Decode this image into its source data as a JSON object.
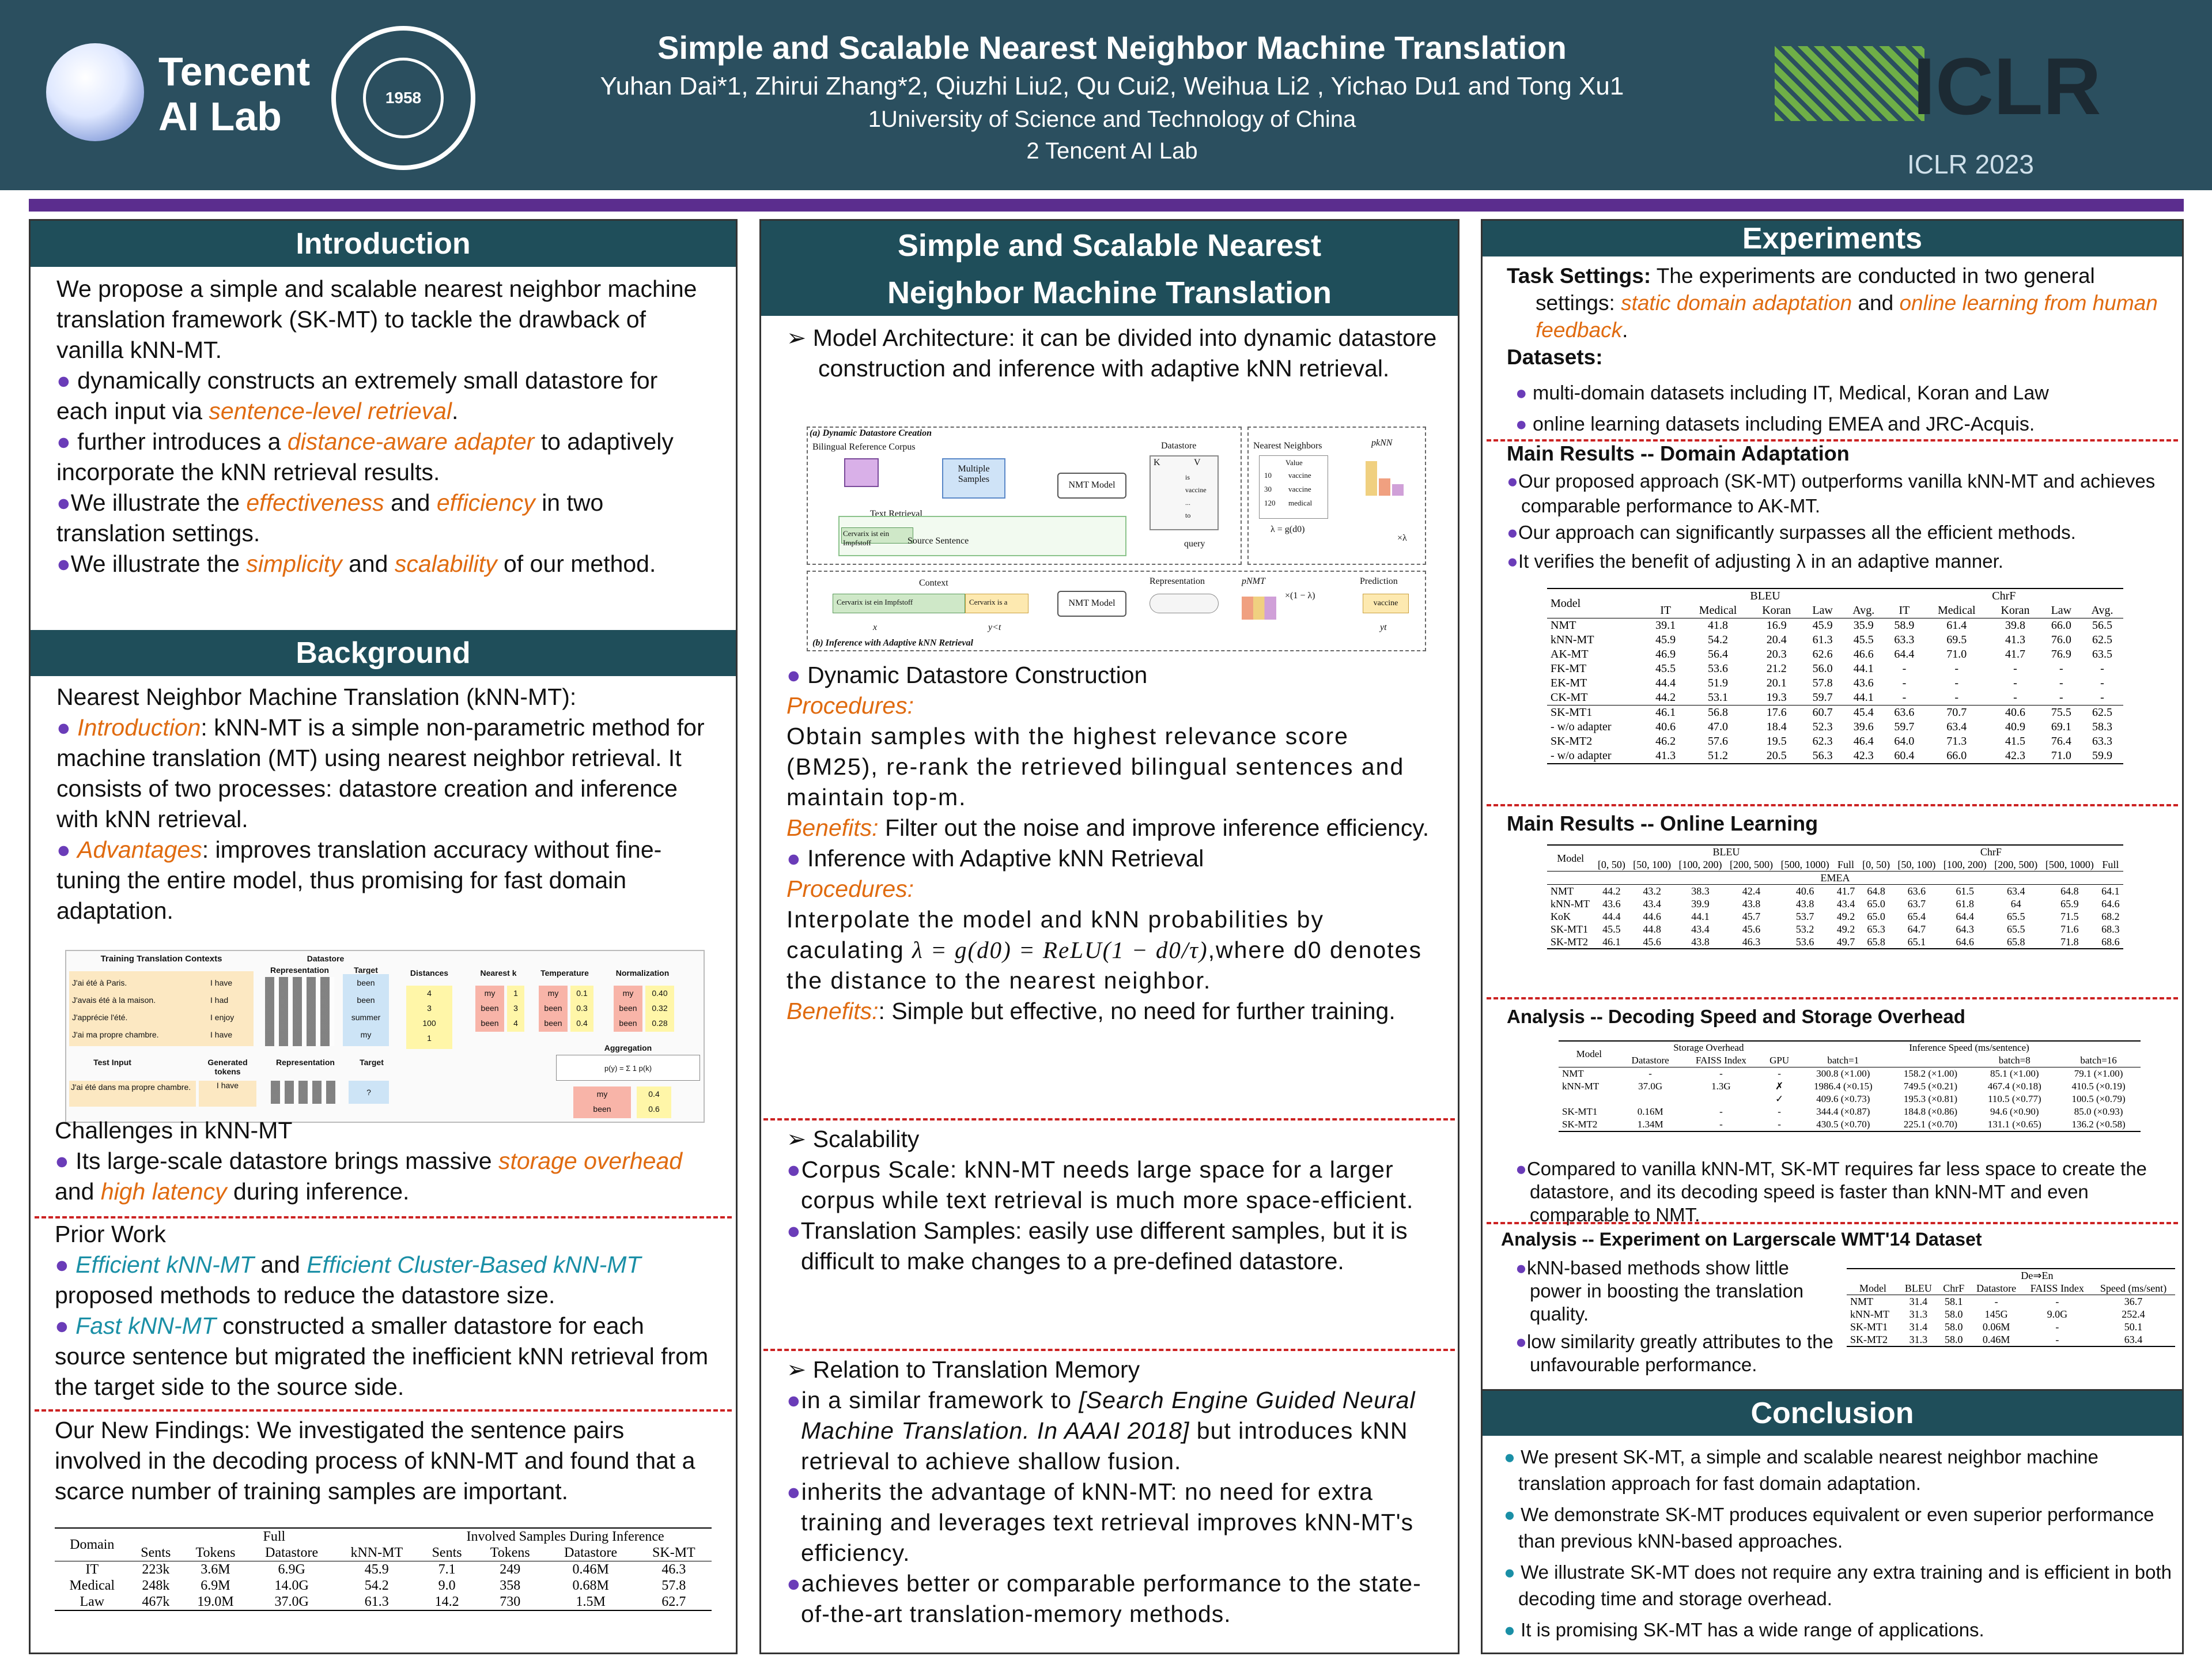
{
  "header": {
    "logo_text_1": "Tencent",
    "logo_text_2": "AI Lab",
    "seal_year": "1958",
    "title": "Simple and Scalable Nearest Neighbor Machine Translation",
    "authors": "Yuhan Dai*1, Zhirui Zhang*2, Qiuzhi Liu2, Qu Cui2, Weihua Li2 , Yichao Du1 and Tong Xu1",
    "affil1": "1University of Science and Technology of China",
    "affil2": "2 Tencent AI Lab",
    "conf_logo": "ICLR",
    "conf": "ICLR 2023"
  },
  "intro": {
    "heading": "Introduction",
    "p1": "We propose a simple and scalable nearest neighbor machine translation framework (SK-MT) to tackle the drawback of vanilla kNN-MT.",
    "b1a": "dynamically constructs an extremely small datastore for each input via ",
    "b1b": "sentence-level retrieval",
    "b1c": ".",
    "b2a": "further introduces a ",
    "b2b": "distance-aware adapter",
    "b2c": " to adaptively incorporate the kNN retrieval results.",
    "b3a": "We illustrate the ",
    "b3b": "effectiveness",
    "b3c": " and ",
    "b3d": "efficiency",
    "b3e": " in two translation settings.",
    "b4a": "We illustrate the ",
    "b4b": "simplicity",
    "b4c": " and ",
    "b4d": "scalability",
    "b4e": " of our method."
  },
  "background": {
    "heading": "Background",
    "sub1": "Nearest Neighbor Machine Translation (kNN-MT):",
    "i1a": "Introduction",
    "i1b": ": kNN-MT is a simple non-parametric method for machine translation (MT) using nearest neighbor retrieval. It consists of two processes: datastore creation and inference with kNN retrieval.",
    "i2a": "Advantages",
    "i2b": ": improves translation accuracy without fine-tuning the entire model, thus promising for fast domain adaptation.",
    "fig": {
      "ttc": "Training Translation Contexts",
      "datastore": "Datastore",
      "representation": "Representation",
      "target": "Target",
      "distances": "Distances",
      "nearest": "Nearest k",
      "temperature": "Temperature",
      "normalization": "Normalization",
      "aggregation": "Aggregation",
      "src": [
        "J'ai été à Paris.",
        "J'avais été à la maison.",
        "J'apprécie l'été.",
        "J'ai ma propre chambre."
      ],
      "tgt": [
        "I have",
        "I had",
        "I enjoy",
        "I have"
      ],
      "targets": [
        "been",
        "been",
        "summer",
        "my"
      ],
      "dist": [
        "4",
        "3",
        "100",
        "1"
      ],
      "nn": [
        "my",
        "been",
        "been"
      ],
      "nk": [
        "1",
        "3",
        "4"
      ],
      "temp": [
        "0.1",
        "0.3",
        "0.4"
      ],
      "norm": [
        "0.40",
        "0.32",
        "0.28"
      ],
      "test_input": "Test Input",
      "generated": "Generated tokens",
      "test_src": "J'ai été dans ma propre chambre.",
      "test_gen": "I have",
      "q": "?",
      "agg_words": [
        "my",
        "been"
      ],
      "agg_vals": [
        "0.4",
        "0.6"
      ]
    },
    "sub2": "Challenges in kNN-MT",
    "c1a": "Its large-scale datastore brings massive ",
    "c1b": "storage overhead",
    "c1c": " and ",
    "c1d": "high latency",
    "c1e": " during inference.",
    "sub3": "Prior Work",
    "pw1a": "Efficient kNN-MT",
    "pw1b": " and ",
    "pw1c": "Efficient Cluster-Based kNN-MT",
    "pw1d": " proposed methods to reduce the datastore size.",
    "pw2a": "Fast kNN-MT",
    "pw2b": " constructed a smaller datastore for each source sentence but migrated the inefficient kNN retrieval from the target side to the source side.",
    "nf_head": "Our New Findings",
    "nf_body": ": We investigated the sentence pairs involved in the decoding process of kNN-MT and found that a scarce number of training samples are important.",
    "table": {
      "headers": [
        "Domain",
        "Full",
        "Involved Samples During Inference",
        "Sents",
        "Tokens",
        "Datastore",
        "kNN-MT",
        "Sents",
        "Tokens",
        "Datastore",
        "SK-MT"
      ],
      "rows": [
        [
          "IT",
          "223k",
          "3.6M",
          "6.9G",
          "45.9",
          "7.1",
          "249",
          "0.46M",
          "46.3"
        ],
        [
          "Medical",
          "248k",
          "6.9M",
          "14.0G",
          "54.2",
          "9.0",
          "358",
          "0.68M",
          "57.8"
        ],
        [
          "Law",
          "467k",
          "19.0M",
          "37.0G",
          "61.3",
          "14.2",
          "730",
          "1.5M",
          "62.7"
        ]
      ]
    }
  },
  "method": {
    "heading1": "Simple and Scalable Nearest",
    "heading2": "Neighbor Machine Translation",
    "arch_label": "Model Architecture",
    "arch_body": ": it can be divided into dynamic datastore construction and inference with adaptive kNN retrieval.",
    "fig": {
      "a": "(a) Dynamic Datastore Creation",
      "b": "(b) Inference with Adaptive kNN Retrieval",
      "corpus": "Bilingual Reference Corpus",
      "multiple": "Multiple Samples",
      "text_ret": "Text Retrieval",
      "src_sent": "Source Sentence",
      "cervarix": "Cervarix ist ein Impfstoff",
      "nmt": "NMT Model",
      "datastore": "Datastore",
      "K": "K",
      "V": "V",
      "kvals": [
        "is",
        "vaccine",
        "...",
        "to"
      ],
      "query": "query",
      "nearest": "Nearest Neighbors",
      "value": "Value",
      "nn_d": [
        "10",
        "30",
        "120"
      ],
      "nn_v": [
        "vaccine",
        "vaccine",
        "medical"
      ],
      "pknn": "pkNN",
      "lam": "λ = g(d0)",
      "xlam": "×λ",
      "context": "Context",
      "ctx_text": "Cervarix ist ein Impfstoff",
      "ctx2": "Cervarix is a",
      "representation": "Representation",
      "pnmt": "pNMT",
      "x1l": "×(1 − λ)",
      "prediction": "Prediction",
      "pred_word": "vaccine",
      "x": "x",
      "y": "y<t",
      "yt": "yt"
    },
    "d1_head": "Dynamic Datastore Construction",
    "proc": "Procedures:",
    "d1_p": "Obtain samples with the highest relevance score (BM25), re-rank the retrieved bilingual sentences and maintain top-m.",
    "ben": "Benefits:",
    "d1_b": " Filter out the noise and improve inference efficiency.",
    "d2_head": "Inference with Adaptive kNN Retrieval",
    "d2_p1": "Interpolate the model and kNN probabilities by caculating ",
    "d2_formula": "λ = g(d0) = ReLU(1 − d0/τ)",
    "d2_p2": ",where d0 denotes the distance to the nearest neighbor.",
    "d2_b": ": Simple but effective, no need for further training.",
    "scal_head": "Scalability",
    "s1a": "Corpus Scale",
    "s1b": ": kNN-MT needs large space for a larger corpus while text retrieval is much more space-efficient.",
    "s2a": "Translation Samples",
    "s2b": ": easily use different samples, but it is difficult to make changes to a pre-defined datastore.",
    "rtm_head": "Relation to Translation Memory",
    "r1a": "in a similar framework to ",
    "r1b": "[Search Engine Guided Neural Machine Translation. In AAAI 2018]",
    "r1c": " but introduces kNN retrieval to achieve shallow fusion.",
    "r2": "inherits the advantage of kNN-MT: no need for extra training and leverages text retrieval improves kNN-MT's efficiency.",
    "r3": "achieves better or comparable performance to the state-of-the-art translation-memory methods."
  },
  "experiments": {
    "heading": "Experiments",
    "ts_head": "Task Settings:",
    "ts_a": " The experiments are conducted in two general settings: ",
    "ts_b": "static domain adaptation",
    "ts_c": " and ",
    "ts_d": "online learning from human feedback",
    "ts_e": ".",
    "ds_head": "Datasets:",
    "ds1": "multi-domain datasets including IT, Medical, Koran and Law",
    "ds2": "online learning datasets including EMEA and JRC-Acquis.",
    "mr1_head": "Main Results -- Domain Adaptation",
    "mr1_b1": "Our proposed approach (SK-MT) outperforms vanilla kNN-MT and achieves comparable performance to AK-MT.",
    "mr1_b2": "Our approach can significantly surpasses all the efficient methods.",
    "mr1_b3": "It verifies the benefit of adjusting λ in an adaptive manner.",
    "t1": {
      "model": "Model",
      "bleu": "BLEU",
      "chrf": "ChrF",
      "cols": [
        "IT",
        "Medical",
        "Koran",
        "Law",
        "Avg.",
        "IT",
        "Medical",
        "Koran",
        "Law",
        "Avg."
      ],
      "rows": [
        [
          "NMT",
          "39.1",
          "41.8",
          "16.9",
          "45.9",
          "35.9",
          "58.9",
          "61.4",
          "39.8",
          "66.0",
          "56.5"
        ],
        [
          "kNN-MT",
          "45.9",
          "54.2",
          "20.4",
          "61.3",
          "45.5",
          "63.3",
          "69.5",
          "41.3",
          "76.0",
          "62.5"
        ],
        [
          "AK-MT",
          "46.9",
          "56.4",
          "20.3",
          "62.6",
          "46.6",
          "64.4",
          "71.0",
          "41.7",
          "76.9",
          "63.5"
        ],
        [
          "FK-MT",
          "45.5",
          "53.6",
          "21.2",
          "56.0",
          "44.1",
          "-",
          "-",
          "-",
          "-",
          "-"
        ],
        [
          "EK-MT",
          "44.4",
          "51.9",
          "20.1",
          "57.8",
          "43.6",
          "-",
          "-",
          "-",
          "-",
          "-"
        ],
        [
          "CK-MT",
          "44.2",
          "53.1",
          "19.3",
          "59.7",
          "44.1",
          "-",
          "-",
          "-",
          "-",
          "-"
        ]
      ],
      "rows2": [
        [
          "SK-MT1",
          "46.1",
          "56.8",
          "17.6",
          "60.7",
          "45.4",
          "63.6",
          "70.7",
          "40.6",
          "75.5",
          "62.5"
        ],
        [
          "- w/o adapter",
          "40.6",
          "47.0",
          "18.4",
          "52.3",
          "39.6",
          "59.7",
          "63.4",
          "40.9",
          "69.1",
          "58.3"
        ],
        [
          "SK-MT2",
          "46.2",
          "57.6",
          "19.5",
          "62.3",
          "46.4",
          "64.0",
          "71.3",
          "41.5",
          "76.4",
          "63.3"
        ],
        [
          "- w/o adapter",
          "41.3",
          "51.2",
          "20.5",
          "56.3",
          "42.3",
          "60.4",
          "66.0",
          "42.3",
          "71.0",
          "59.9"
        ]
      ]
    },
    "mr2_head": "Main Results -- Online Learning",
    "t2": {
      "model": "Model",
      "bleu": "BLEU",
      "chrf": "ChrF",
      "cols": [
        "[0, 50)",
        "[50, 100)",
        "[100, 200)",
        "[200, 500)",
        "[500, 1000)",
        "Full",
        "[0, 50)",
        "[50, 100)",
        "[100, 200)",
        "[200, 500)",
        "[500, 1000)",
        "Full"
      ],
      "emea": "EMEA",
      "rows": [
        [
          "NMT",
          "44.2",
          "43.2",
          "38.3",
          "42.4",
          "40.6",
          "41.7",
          "64.8",
          "63.6",
          "61.5",
          "63.4",
          "64.8",
          "64.1"
        ],
        [
          "kNN-MT",
          "43.6",
          "43.4",
          "39.9",
          "43.8",
          "43.8",
          "43.4",
          "65.0",
          "63.7",
          "61.8",
          "64",
          "65.9",
          "64.6"
        ],
        [
          "KoK",
          "44.4",
          "44.6",
          "44.1",
          "45.7",
          "53.7",
          "49.2",
          "65.0",
          "65.4",
          "64.4",
          "65.5",
          "71.5",
          "68.2"
        ],
        [
          "SK-MT1",
          "45.5",
          "44.8",
          "43.4",
          "45.6",
          "53.2",
          "49.2",
          "65.3",
          "64.7",
          "64.3",
          "65.5",
          "71.6",
          "68.3"
        ],
        [
          "SK-MT2",
          "46.1",
          "45.6",
          "43.8",
          "46.3",
          "53.6",
          "49.7",
          "65.8",
          "65.1",
          "64.6",
          "65.8",
          "71.8",
          "68.6"
        ]
      ]
    },
    "an1_head": "Analysis -- Decoding Speed and Storage Overhead",
    "t3": {
      "model": "Model",
      "so": "Storage Overhead",
      "is": "Inference Speed (ms/sentence)",
      "cols": [
        "Datastore",
        "FAISS Index",
        "GPU",
        "batch=1",
        "batch=8",
        "batch=16"
      ],
      "rows": [
        [
          "NMT",
          "-",
          "-",
          "-",
          "300.8 (×1.00)",
          "158.2 (×1.00)",
          "85.1 (×1.00)",
          "79.1 (×1.00)"
        ],
        [
          "kNN-MT",
          "37.0G",
          "1.3G",
          "✗",
          "1986.4 (×0.15)",
          "749.5 (×0.21)",
          "467.4 (×0.18)",
          "410.5 (×0.19)"
        ],
        [
          "",
          "",
          "",
          "✓",
          "409.6 (×0.73)",
          "195.3 (×0.81)",
          "110.5 (×0.77)",
          "100.5 (×0.79)"
        ],
        [
          "SK-MT1",
          "0.16M",
          "-",
          "-",
          "344.4 (×0.87)",
          "184.8 (×0.86)",
          "94.6 (×0.90)",
          "85.0 (×0.93)"
        ],
        [
          "SK-MT2",
          "1.34M",
          "-",
          "-",
          "430.5 (×0.70)",
          "225.1 (×0.70)",
          "131.1 (×0.65)",
          "136.2 (×0.58)"
        ]
      ]
    },
    "an1_b": "Compared to vanilla kNN-MT, SK-MT requires far less space to create the datastore, and its decoding speed is faster than kNN-MT and even comparable to NMT.",
    "an2_head": "Analysis -- Experiment on Largerscale WMT'14 Dataset",
    "an2_b1": "kNN-based methods show little power in boosting the translation quality.",
    "an2_b2": "low similarity greatly attributes to the unfavourable performance.",
    "t4": {
      "dir": "De⇒En",
      "cols": [
        "Model",
        "BLEU",
        "ChrF",
        "Datastore",
        "FAISS Index",
        "Speed (ms/sent)"
      ],
      "rows": [
        [
          "NMT",
          "31.4",
          "58.1",
          "-",
          "-",
          "36.7"
        ],
        [
          "kNN-MT",
          "31.3",
          "58.0",
          "145G",
          "9.0G",
          "252.4"
        ],
        [
          "SK-MT1",
          "31.4",
          "58.0",
          "0.06M",
          "-",
          "50.1"
        ],
        [
          "SK-MT2",
          "31.3",
          "58.0",
          "0.46M",
          "-",
          "63.4"
        ]
      ]
    }
  },
  "conclusion": {
    "heading": "Conclusion",
    "c1": "We present SK-MT, a simple and scalable nearest neighbor machine translation approach for fast domain adaptation.",
    "c2": "We demonstrate SK-MT produces equivalent or even superior performance than previous kNN-based approaches.",
    "c3": "We illustrate SK-MT does not require any extra training and is efficient in both decoding time and storage overhead.",
    "c4": "It is promising SK-MT has a wide range of applications."
  }
}
